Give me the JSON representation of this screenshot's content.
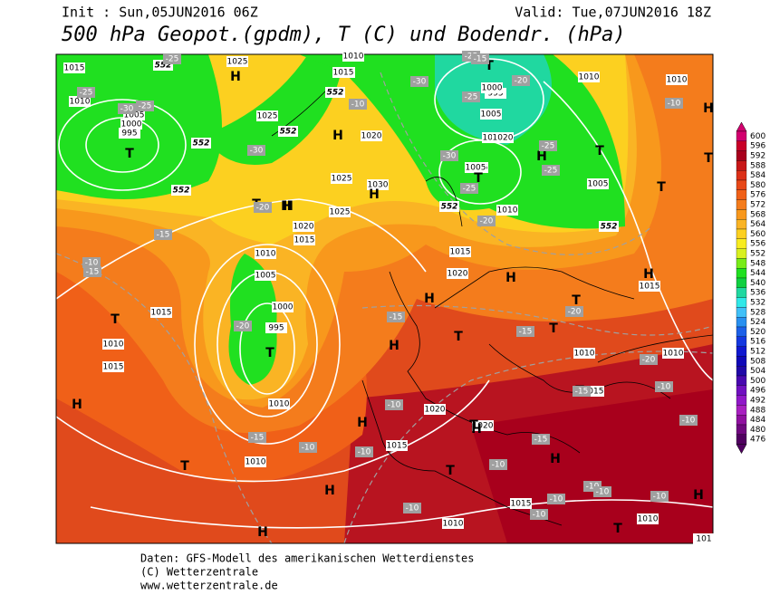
{
  "header": {
    "init": "Init : Sun,05JUN2016 06Z",
    "valid": "Valid: Tue,07JUN2016 18Z",
    "title": "500 hPa Geopot.(gpdm), T (C) und Bodendr. (hPa)"
  },
  "scale": {
    "labels": [
      "600",
      "596",
      "592",
      "588",
      "584",
      "580",
      "576",
      "572",
      "568",
      "564",
      "560",
      "556",
      "552",
      "548",
      "544",
      "540",
      "536",
      "532",
      "528",
      "524",
      "520",
      "516",
      "512",
      "508",
      "504",
      "500",
      "496",
      "492",
      "488",
      "484",
      "480",
      "476"
    ],
    "colors": [
      "#d2006e",
      "#c80028",
      "#a8001c",
      "#c81818",
      "#dc3018",
      "#e84818",
      "#f06018",
      "#f47c1c",
      "#f8981c",
      "#fab424",
      "#fcd020",
      "#f8ec20",
      "#d8f020",
      "#78ec18",
      "#20e020",
      "#10d040",
      "#20d8a0",
      "#30e8e8",
      "#40c0f8",
      "#2890f0",
      "#1c60e8",
      "#1438e0",
      "#1018d0",
      "#1008b8",
      "#2008a8",
      "#4808b0",
      "#7010c0",
      "#9018c8",
      "#a820c0",
      "#9010a0",
      "#700880",
      "#500060"
    ]
  },
  "map": {
    "pressure_labels": [
      "1015",
      "1010",
      "1005",
      "1000",
      "995",
      "1025",
      "1025",
      "1015",
      "1010",
      "1020",
      "1025",
      "1030",
      "1020",
      "1010",
      "1005",
      "995",
      "1000",
      "1005",
      "1010",
      "1020",
      "1015",
      "1015",
      "1010",
      "1025",
      "1015",
      "1020",
      "1010",
      "1010",
      "1015",
      "1005",
      "995",
      "1000",
      "1005",
      "1010",
      "1015",
      "1010",
      "1020",
      "1015",
      "1020",
      "1015",
      "1015",
      "1010",
      "1010",
      "1005",
      "1010",
      "1015",
      "1010",
      "1010",
      "101"
    ],
    "isohypse_labels": [
      "552",
      "552",
      "552",
      "552",
      "552",
      "552",
      "552"
    ],
    "centers": [
      "H",
      "T",
      "H",
      "H",
      "T",
      "T",
      "H",
      "H",
      "T",
      "T",
      "T",
      "H",
      "T",
      "H",
      "H",
      "T",
      "T",
      "T",
      "H",
      "T",
      "H",
      "H",
      "H",
      "H",
      "T",
      "T",
      "H",
      "T",
      "H",
      "H",
      "H",
      "T",
      "T",
      "H",
      "T"
    ],
    "temp_labels": [
      "-25",
      "-25",
      "-30",
      "-25",
      "-30",
      "-30",
      "-25",
      "-20",
      "-25",
      "-30",
      "-25",
      "-25",
      "-25",
      "-20",
      "-20",
      "-15",
      "-15",
      "-10",
      "-20",
      "-20",
      "-15",
      "-15",
      "-20",
      "-15",
      "-10",
      "-15",
      "-10",
      "-10",
      "-10",
      "-15",
      "-10",
      "-10",
      "-10",
      "-10",
      "-10",
      "-10",
      "-10",
      "-10",
      "-10",
      "-10",
      "-15"
    ]
  },
  "footer": {
    "line1": "Daten: GFS-Modell des amerikanischen Wetterdienstes",
    "line2": "(C) Wetterzentrale",
    "line3": "www.wetterzentrale.de"
  }
}
